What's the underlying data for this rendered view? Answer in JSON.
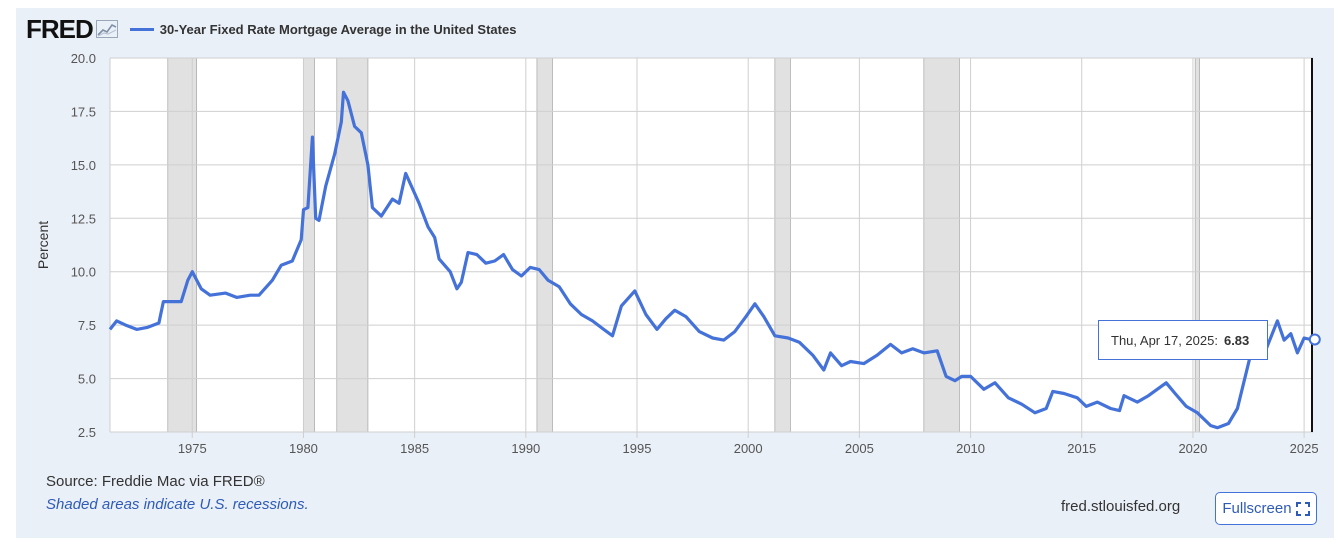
{
  "header": {
    "logo_text": "FRED",
    "logo_icon": "chart-line-icon",
    "series_label": "30-Year Fixed Rate Mortgage Average in the United States"
  },
  "chart_data": {
    "type": "line",
    "title": "30-Year Fixed Rate Mortgage Average in the United States",
    "ylabel": "Percent",
    "xlabel": "",
    "xlim": [
      1971.3,
      2025.4
    ],
    "ylim": [
      2.5,
      20.0
    ],
    "x_ticks": [
      "1975",
      "1980",
      "1985",
      "1990",
      "1995",
      "2000",
      "2005",
      "2010",
      "2015",
      "2020",
      "2025"
    ],
    "y_ticks": [
      "2.5",
      "5.0",
      "7.5",
      "10.0",
      "12.5",
      "15.0",
      "17.5",
      "20.0"
    ],
    "grid": true,
    "line_color": "#4472d9",
    "recession_shading": [
      [
        1973.9,
        1975.2
      ],
      [
        1980.0,
        1980.5
      ],
      [
        1981.5,
        1982.9
      ],
      [
        1990.5,
        1991.2
      ],
      [
        2001.2,
        2001.9
      ],
      [
        2007.9,
        2009.5
      ],
      [
        2020.1,
        2020.3
      ]
    ],
    "series": [
      {
        "values": [
          [
            1971.3,
            7.3
          ],
          [
            1971.6,
            7.7
          ],
          [
            1972.0,
            7.5
          ],
          [
            1972.5,
            7.3
          ],
          [
            1973.0,
            7.4
          ],
          [
            1973.5,
            7.6
          ],
          [
            1973.7,
            8.6
          ],
          [
            1974.0,
            8.6
          ],
          [
            1974.5,
            8.6
          ],
          [
            1974.8,
            9.6
          ],
          [
            1975.0,
            10.0
          ],
          [
            1975.4,
            9.2
          ],
          [
            1975.8,
            8.9
          ],
          [
            1976.5,
            9.0
          ],
          [
            1977.0,
            8.8
          ],
          [
            1977.6,
            8.9
          ],
          [
            1978.0,
            8.9
          ],
          [
            1978.6,
            9.6
          ],
          [
            1979.0,
            10.3
          ],
          [
            1979.5,
            10.5
          ],
          [
            1979.9,
            11.5
          ],
          [
            1980.0,
            12.9
          ],
          [
            1980.2,
            13.0
          ],
          [
            1980.4,
            16.3
          ],
          [
            1980.55,
            12.5
          ],
          [
            1980.7,
            12.4
          ],
          [
            1981.0,
            14.0
          ],
          [
            1981.4,
            15.5
          ],
          [
            1981.7,
            17.0
          ],
          [
            1981.8,
            18.4
          ],
          [
            1982.0,
            18.0
          ],
          [
            1982.3,
            16.8
          ],
          [
            1982.6,
            16.5
          ],
          [
            1982.9,
            15.0
          ],
          [
            1983.1,
            13.0
          ],
          [
            1983.5,
            12.6
          ],
          [
            1984.0,
            13.4
          ],
          [
            1984.3,
            13.2
          ],
          [
            1984.6,
            14.6
          ],
          [
            1984.9,
            13.9
          ],
          [
            1985.2,
            13.2
          ],
          [
            1985.6,
            12.1
          ],
          [
            1985.9,
            11.6
          ],
          [
            1986.1,
            10.6
          ],
          [
            1986.6,
            10.0
          ],
          [
            1986.9,
            9.2
          ],
          [
            1987.1,
            9.5
          ],
          [
            1987.4,
            10.9
          ],
          [
            1987.8,
            10.8
          ],
          [
            1988.2,
            10.4
          ],
          [
            1988.6,
            10.5
          ],
          [
            1989.0,
            10.8
          ],
          [
            1989.4,
            10.1
          ],
          [
            1989.8,
            9.8
          ],
          [
            1990.2,
            10.2
          ],
          [
            1990.6,
            10.1
          ],
          [
            1991.0,
            9.6
          ],
          [
            1991.5,
            9.3
          ],
          [
            1992.0,
            8.5
          ],
          [
            1992.5,
            8.0
          ],
          [
            1993.0,
            7.7
          ],
          [
            1993.5,
            7.3
          ],
          [
            1993.9,
            7.0
          ],
          [
            1994.3,
            8.4
          ],
          [
            1994.9,
            9.1
          ],
          [
            1995.4,
            8.0
          ],
          [
            1995.9,
            7.3
          ],
          [
            1996.3,
            7.8
          ],
          [
            1996.7,
            8.2
          ],
          [
            1997.2,
            7.9
          ],
          [
            1997.8,
            7.2
          ],
          [
            1998.4,
            6.9
          ],
          [
            1998.9,
            6.8
          ],
          [
            1999.4,
            7.2
          ],
          [
            1999.9,
            7.9
          ],
          [
            2000.3,
            8.5
          ],
          [
            2000.7,
            7.9
          ],
          [
            2001.2,
            7.0
          ],
          [
            2001.8,
            6.9
          ],
          [
            2002.3,
            6.7
          ],
          [
            2002.9,
            6.1
          ],
          [
            2003.4,
            5.4
          ],
          [
            2003.7,
            6.2
          ],
          [
            2004.2,
            5.6
          ],
          [
            2004.6,
            5.8
          ],
          [
            2005.2,
            5.7
          ],
          [
            2005.8,
            6.1
          ],
          [
            2006.4,
            6.6
          ],
          [
            2006.9,
            6.2
          ],
          [
            2007.4,
            6.4
          ],
          [
            2007.9,
            6.2
          ],
          [
            2008.5,
            6.3
          ],
          [
            2008.9,
            5.1
          ],
          [
            2009.3,
            4.9
          ],
          [
            2009.6,
            5.1
          ],
          [
            2010.0,
            5.1
          ],
          [
            2010.6,
            4.5
          ],
          [
            2011.1,
            4.8
          ],
          [
            2011.7,
            4.1
          ],
          [
            2012.3,
            3.8
          ],
          [
            2012.9,
            3.4
          ],
          [
            2013.4,
            3.6
          ],
          [
            2013.7,
            4.4
          ],
          [
            2014.2,
            4.3
          ],
          [
            2014.8,
            4.1
          ],
          [
            2015.2,
            3.7
          ],
          [
            2015.7,
            3.9
          ],
          [
            2016.3,
            3.6
          ],
          [
            2016.7,
            3.5
          ],
          [
            2016.9,
            4.2
          ],
          [
            2017.5,
            3.9
          ],
          [
            2018.0,
            4.2
          ],
          [
            2018.8,
            4.8
          ],
          [
            2019.2,
            4.3
          ],
          [
            2019.7,
            3.7
          ],
          [
            2020.2,
            3.4
          ],
          [
            2020.8,
            2.8
          ],
          [
            2021.1,
            2.7
          ],
          [
            2021.6,
            2.9
          ],
          [
            2022.0,
            3.6
          ],
          [
            2022.4,
            5.3
          ],
          [
            2022.8,
            7.0
          ],
          [
            2022.9,
            6.5
          ],
          [
            2023.3,
            6.4
          ],
          [
            2023.8,
            7.7
          ],
          [
            2024.1,
            6.8
          ],
          [
            2024.4,
            7.1
          ],
          [
            2024.7,
            6.2
          ],
          [
            2025.0,
            6.9
          ],
          [
            2025.3,
            6.83
          ]
        ]
      }
    ]
  },
  "tooltip": {
    "date": "Thu, Apr 17, 2025:",
    "value": "6.83",
    "x": 2025.3,
    "y": 6.83
  },
  "footer": {
    "source": "Source: Freddie Mac via FRED®",
    "note": "Shaded areas indicate U.S. recessions.",
    "site": "fred.stlouisfed.org",
    "fullscreen_label": "Fullscreen",
    "fullscreen_icon": "expand-icon"
  }
}
